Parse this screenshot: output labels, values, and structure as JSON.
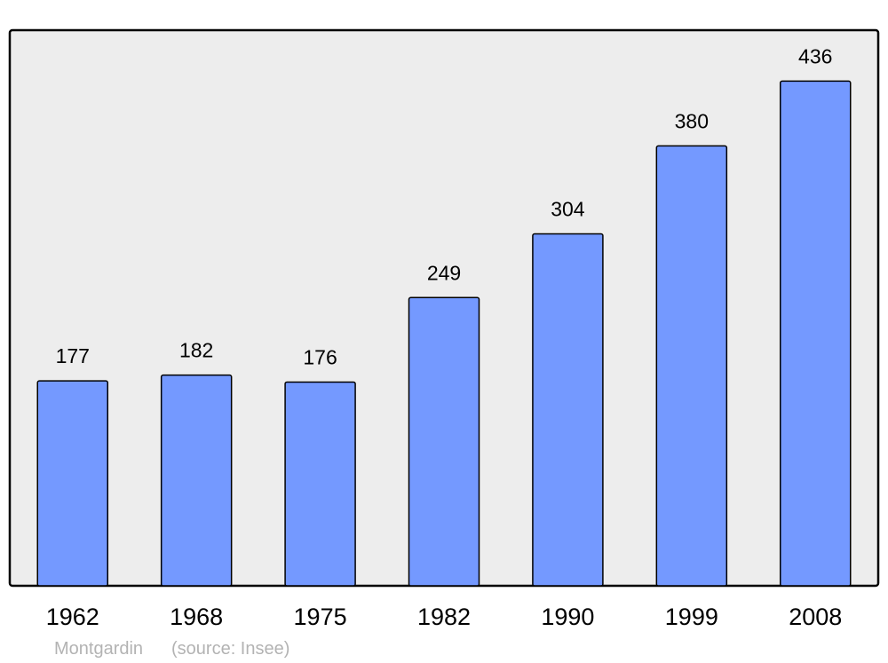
{
  "chart_data": {
    "type": "bar",
    "categories": [
      "1962",
      "1968",
      "1975",
      "1982",
      "1990",
      "1999",
      "2008"
    ],
    "values": [
      177,
      182,
      176,
      249,
      304,
      380,
      436
    ],
    "title": "",
    "xlabel": "",
    "ylabel": "",
    "ylim": [
      0,
      480
    ],
    "grid": false,
    "data_labels": true,
    "colors": {
      "bar": "#7499ff",
      "plot_background": "#ededed",
      "border": "#000000",
      "caption": "#b3b3b3"
    }
  },
  "caption": {
    "place": "Montgardin",
    "source": "(source: Insee)"
  }
}
